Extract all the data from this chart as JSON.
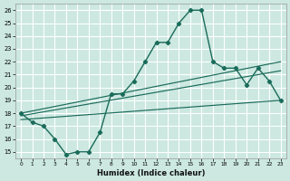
{
  "xlabel": "Humidex (Indice chaleur)",
  "xlim": [
    -0.5,
    23.5
  ],
  "ylim": [
    14.5,
    26.5
  ],
  "xticks": [
    0,
    1,
    2,
    3,
    4,
    5,
    6,
    7,
    8,
    9,
    10,
    11,
    12,
    13,
    14,
    15,
    16,
    17,
    18,
    19,
    20,
    21,
    22,
    23
  ],
  "yticks": [
    15,
    16,
    17,
    18,
    19,
    20,
    21,
    22,
    23,
    24,
    25,
    26
  ],
  "bg_color": "#cce8e0",
  "line_color": "#1a6b5a",
  "grid_color": "#ffffff",
  "main_x": [
    0,
    1,
    2,
    3,
    4,
    5,
    6,
    7,
    8,
    9,
    10,
    11,
    12,
    13,
    14,
    15,
    16,
    17,
    18,
    19,
    20,
    21,
    22,
    23
  ],
  "main_y": [
    18,
    17.3,
    17,
    16,
    14.8,
    15.0,
    15.0,
    16.5,
    19.5,
    19.5,
    20.5,
    22,
    23.5,
    23.5,
    25,
    26,
    26,
    22,
    21.5,
    21.5,
    20.2,
    21.5,
    20.5,
    19
  ],
  "line1_x": [
    0,
    23
  ],
  "line1_y": [
    17.5,
    19.0
  ],
  "line2_x": [
    0,
    23
  ],
  "line2_y": [
    17.8,
    21.3
  ],
  "line3_x": [
    0,
    23
  ],
  "line3_y": [
    18.0,
    22.0
  ]
}
